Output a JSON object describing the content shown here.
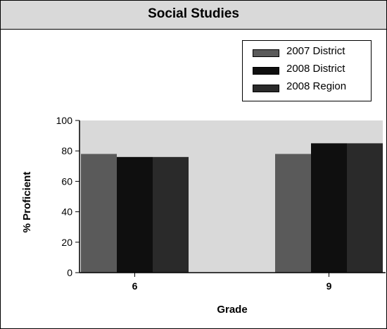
{
  "chart_data": {
    "type": "bar",
    "title": "Social Studies",
    "xlabel": "Grade",
    "ylabel": "% Proficient",
    "categories": [
      "6",
      "9"
    ],
    "series": [
      {
        "name": "2007 District",
        "values": [
          78,
          78
        ],
        "color": "#5a5a5a"
      },
      {
        "name": "2008 District",
        "values": [
          76,
          85
        ],
        "color": "#0f0f0f"
      },
      {
        "name": "2008 Region",
        "values": [
          76,
          85
        ],
        "color": "#2a2a2a"
      }
    ],
    "ylim": [
      0,
      100
    ],
    "yticks": [
      0,
      20,
      40,
      60,
      80,
      100
    ],
    "plot_background": "#d9d9d9",
    "grid": false,
    "legend_position": "top-right"
  }
}
